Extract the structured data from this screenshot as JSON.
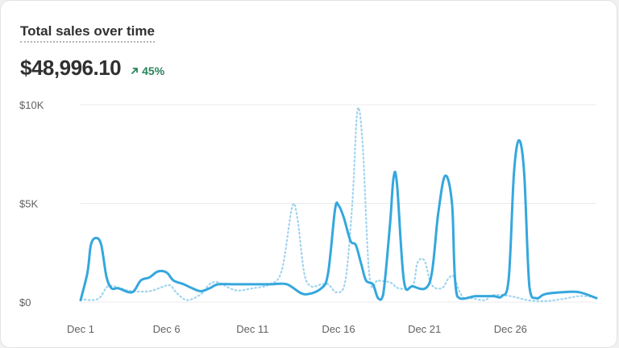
{
  "header": {
    "title": "Total sales over time",
    "value": "$48,996.10",
    "delta": "45%",
    "delta_icon": "arrow-up-right-icon"
  },
  "colors": {
    "line": "#35a7dd",
    "comparison_line": "#9fd3ee",
    "grid": "#ebebeb",
    "text": "#303030",
    "tick": "#616161",
    "positive": "#29845a"
  },
  "chart_data": {
    "type": "line",
    "title": "Total sales over time",
    "xlabel": "",
    "ylabel": "",
    "ylim": [
      0,
      10000
    ],
    "y_ticks": [
      0,
      5000,
      10000
    ],
    "y_tick_labels": [
      "$0",
      "$5K",
      "$10K"
    ],
    "x_tick_labels": [
      "Dec 1",
      "Dec 6",
      "Dec 11",
      "Dec 16",
      "Dec 21",
      "Dec 26"
    ],
    "x_tick_positions": [
      1,
      6,
      11,
      16,
      21,
      26
    ],
    "xlim": [
      1,
      31
    ],
    "grid": true,
    "legend": "none",
    "series": [
      {
        "style": "solid",
        "points": [
          [
            1,
            100
          ],
          [
            1.4,
            1500
          ],
          [
            1.6,
            2900
          ],
          [
            1.9,
            3250
          ],
          [
            2.2,
            2900
          ],
          [
            2.5,
            1300
          ],
          [
            2.8,
            700
          ],
          [
            3.2,
            700
          ],
          [
            4,
            500
          ],
          [
            4.5,
            1100
          ],
          [
            5,
            1250
          ],
          [
            5.5,
            1550
          ],
          [
            6,
            1500
          ],
          [
            6.4,
            1100
          ],
          [
            7,
            900
          ],
          [
            7.5,
            700
          ],
          [
            8,
            550
          ],
          [
            8.5,
            700
          ],
          [
            9,
            900
          ],
          [
            10,
            900
          ],
          [
            11,
            900
          ],
          [
            12,
            900
          ],
          [
            13,
            900
          ],
          [
            14,
            400
          ],
          [
            15,
            700
          ],
          [
            15.4,
            1500
          ],
          [
            15.8,
            4700
          ],
          [
            16,
            4900
          ],
          [
            16.3,
            4300
          ],
          [
            16.7,
            3100
          ],
          [
            17,
            2900
          ],
          [
            17.3,
            2000
          ],
          [
            17.6,
            1100
          ],
          [
            18,
            900
          ],
          [
            18.3,
            200
          ],
          [
            18.6,
            400
          ],
          [
            19,
            4000
          ],
          [
            19.2,
            6300
          ],
          [
            19.4,
            6000
          ],
          [
            19.8,
            1100
          ],
          [
            20.3,
            800
          ],
          [
            21.3,
            1000
          ],
          [
            21.8,
            4500
          ],
          [
            22.2,
            6400
          ],
          [
            22.6,
            5000
          ],
          [
            22.9,
            300
          ],
          [
            24,
            300
          ],
          [
            25,
            300
          ],
          [
            25.5,
            300
          ],
          [
            25.9,
            1200
          ],
          [
            26.2,
            6500
          ],
          [
            26.5,
            8200
          ],
          [
            26.8,
            6500
          ],
          [
            27.1,
            800
          ],
          [
            27.5,
            200
          ],
          [
            28,
            400
          ],
          [
            29,
            500
          ],
          [
            30,
            500
          ],
          [
            31,
            200
          ]
        ]
      },
      {
        "style": "dotted",
        "points": [
          [
            1,
            150
          ],
          [
            2,
            150
          ],
          [
            2.6,
            800
          ],
          [
            3.3,
            700
          ],
          [
            4,
            550
          ],
          [
            5,
            550
          ],
          [
            5.7,
            750
          ],
          [
            6.2,
            850
          ],
          [
            6.6,
            450
          ],
          [
            7.2,
            100
          ],
          [
            8,
            400
          ],
          [
            8.5,
            900
          ],
          [
            9,
            1000
          ],
          [
            10,
            600
          ],
          [
            11,
            700
          ],
          [
            12,
            900
          ],
          [
            12.7,
            1600
          ],
          [
            13.3,
            4800
          ],
          [
            13.6,
            4300
          ],
          [
            14,
            1500
          ],
          [
            14.4,
            800
          ],
          [
            15,
            900
          ],
          [
            15.4,
            900
          ],
          [
            15.9,
            500
          ],
          [
            16.4,
            1100
          ],
          [
            16.8,
            5000
          ],
          [
            17.1,
            9700
          ],
          [
            17.4,
            8000
          ],
          [
            17.8,
            1300
          ],
          [
            18.3,
            1100
          ],
          [
            19,
            1000
          ],
          [
            19.5,
            700
          ],
          [
            20.3,
            800
          ],
          [
            20.6,
            2000
          ],
          [
            21,
            2100
          ],
          [
            21.4,
            900
          ],
          [
            22,
            700
          ],
          [
            22.4,
            1200
          ],
          [
            22.7,
            1300
          ],
          [
            23,
            600
          ],
          [
            23.3,
            200
          ],
          [
            23.7,
            200
          ],
          [
            24.5,
            100
          ],
          [
            25,
            350
          ],
          [
            26,
            300
          ],
          [
            27,
            100
          ],
          [
            28,
            50
          ],
          [
            29,
            150
          ],
          [
            30,
            300
          ],
          [
            31,
            250
          ]
        ]
      }
    ]
  }
}
